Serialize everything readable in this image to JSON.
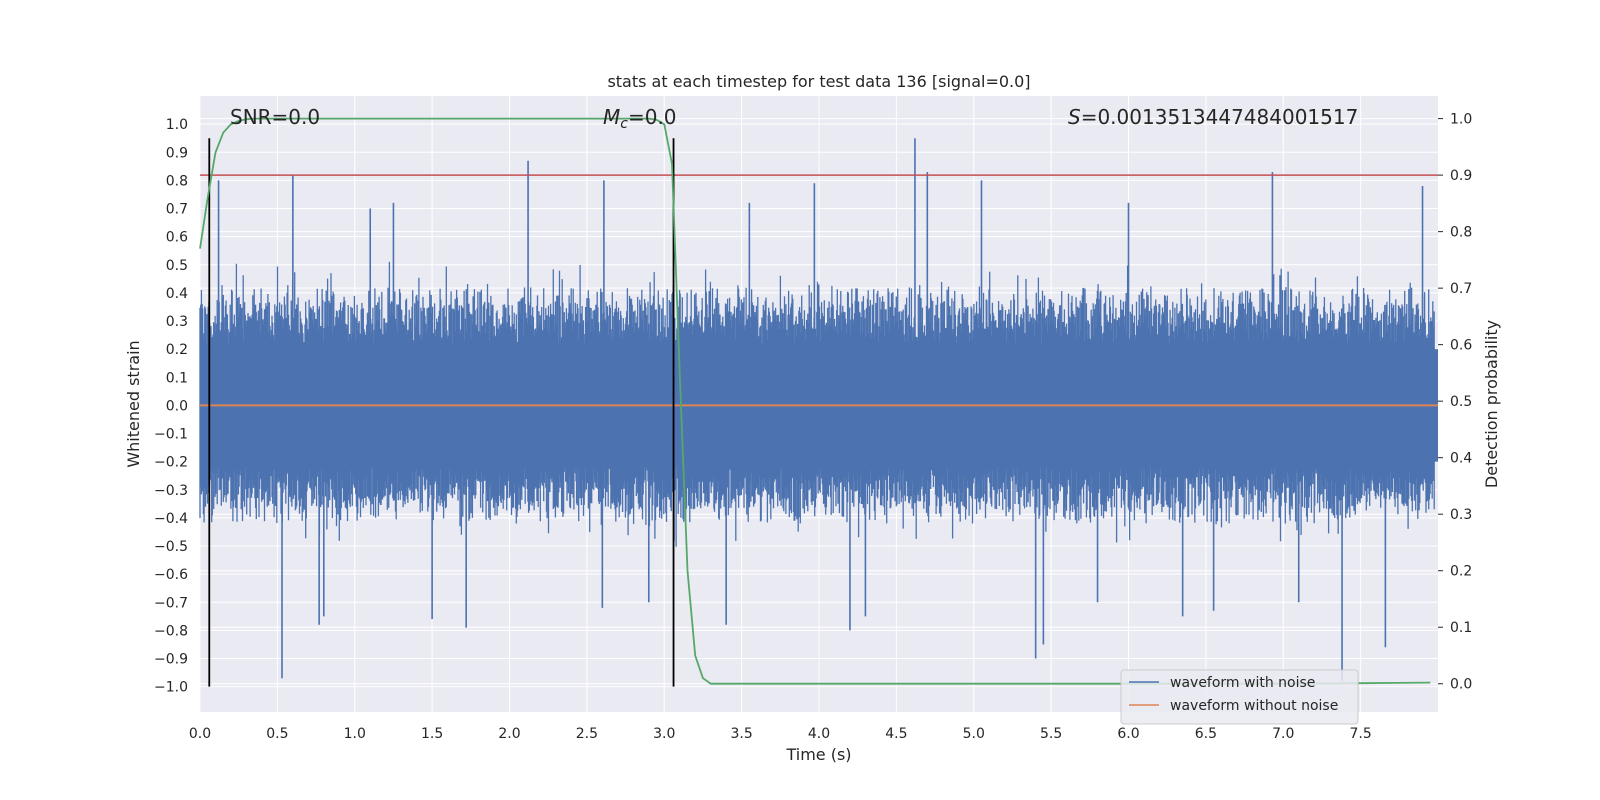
{
  "chart_data": {
    "type": "line",
    "title": "stats at each timestep for test data 136 [signal=0.0]",
    "xlabel": "Time (s)",
    "ylabel": "Whitened strain",
    "ylabel_right": "Detection probability",
    "xlim": [
      0.0,
      8.0
    ],
    "ylim": [
      -1.09,
      1.1
    ],
    "ylim_right": [
      -0.05,
      1.04
    ],
    "x_ticks": [
      "0.0",
      "0.5",
      "1.0",
      "1.5",
      "2.0",
      "2.5",
      "3.0",
      "3.5",
      "4.0",
      "4.5",
      "5.0",
      "5.5",
      "6.0",
      "6.5",
      "7.0",
      "7.5"
    ],
    "y_ticks": [
      "1.0",
      "0.9",
      "0.8",
      "0.7",
      "0.6",
      "0.5",
      "0.4",
      "0.3",
      "0.2",
      "0.1",
      "0.0",
      "−0.1",
      "−0.2",
      "−0.3",
      "−0.4",
      "−0.5",
      "−0.6",
      "−0.7",
      "−0.8",
      "−0.9",
      "−1.0"
    ],
    "y_right_ticks": [
      "1.0",
      "0.9",
      "0.8",
      "0.7",
      "0.6",
      "0.5",
      "0.4",
      "0.3",
      "0.2",
      "0.1",
      "0.0"
    ],
    "annotations": {
      "snr": "SNR=0.0",
      "mc_symbol": "M",
      "mc_sub": "c",
      "mc_value": "=0.0",
      "s_symbol": "S",
      "s_value": "=0.0013513447484001517"
    },
    "legend": {
      "with_noise": "waveform with noise",
      "without_noise": "waveform without noise"
    },
    "threshold": 0.9,
    "detection_window": [
      0.06,
      3.06
    ],
    "waveform_without_noise": 0.0,
    "detection_probability": {
      "x": [
        0.0,
        0.05,
        0.1,
        0.15,
        0.2,
        0.25,
        0.3,
        0.35,
        0.4,
        0.5,
        1.0,
        1.5,
        2.0,
        2.5,
        2.8,
        2.9,
        2.95,
        3.0,
        3.05,
        3.1,
        3.15,
        3.2,
        3.25,
        3.3,
        3.35,
        4.0,
        5.0,
        6.0,
        7.0,
        7.5,
        7.95
      ],
      "y": [
        0.77,
        0.86,
        0.94,
        0.975,
        0.99,
        0.996,
        0.999,
        1.0,
        1.0,
        1.0,
        1.0,
        1.0,
        1.0,
        1.0,
        1.0,
        1.0,
        0.998,
        0.99,
        0.92,
        0.55,
        0.2,
        0.05,
        0.01,
        0.0,
        0.0,
        0.0,
        0.0,
        0.0,
        0.0,
        0.001,
        0.002
      ]
    },
    "noise_spikes": {
      "x": [
        0.12,
        0.53,
        0.6,
        0.77,
        1.25,
        1.5,
        1.72,
        2.12,
        2.61,
        2.9,
        3.55,
        3.97,
        4.3,
        4.62,
        4.7,
        5.05,
        5.4,
        5.45,
        6.0,
        6.35,
        6.93,
        7.38,
        7.66,
        7.9,
        0.8,
        1.1,
        2.6,
        3.4,
        4.2,
        5.8,
        6.55,
        7.1
      ],
      "y": [
        0.8,
        -0.97,
        0.82,
        -0.78,
        0.72,
        -0.76,
        -0.79,
        0.87,
        0.8,
        -0.7,
        0.72,
        0.79,
        -0.75,
        0.95,
        0.83,
        0.8,
        -0.9,
        -0.85,
        0.72,
        -0.75,
        0.83,
        -0.98,
        -0.86,
        0.78,
        -0.75,
        0.7,
        -0.72,
        -0.78,
        -0.8,
        -0.7,
        -0.73,
        -0.7
      ]
    }
  }
}
